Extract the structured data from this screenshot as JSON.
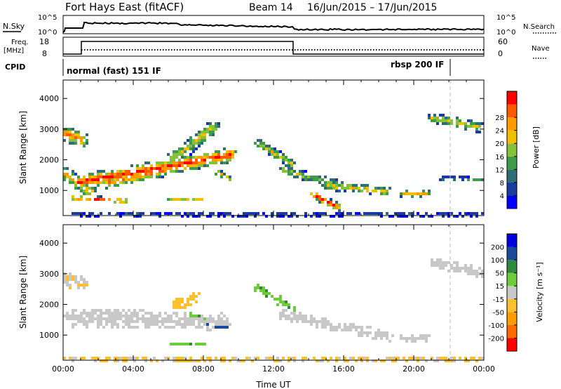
{
  "header": {
    "title": "Fort Hays East (fitACF)",
    "beam": "Beam 14",
    "date_range": "16/Jun/2015 – 17/Jun/2015"
  },
  "panels": {
    "nsky": {
      "label": "N.Sky",
      "left_ticks": [
        "10^5",
        "10^0"
      ],
      "right_ticks": [
        "10^5",
        "10^0"
      ],
      "right_label": "N.Search"
    },
    "freq": {
      "label": "Freq.",
      "unit": "[MHz]",
      "left_ticks": [
        "18",
        "8"
      ],
      "right_ticks": [
        "60",
        "0"
      ],
      "right_label": "Nave"
    },
    "cpid": {
      "label": "CPID",
      "mode_left": "normal (fast) 151 IF",
      "mode_right": "rbsp 200 IF"
    }
  },
  "colors": {
    "power": [
      "#0000ff",
      "#1a3ca0",
      "#2f6c73",
      "#3f9a4a",
      "#85c23a",
      "#f0c000",
      "#ff9a00",
      "#ff5a00",
      "#ff0000"
    ],
    "velocity": [
      "#ff0000",
      "#ff6a00",
      "#ff9a00",
      "#ffc030",
      "#c8c8c8",
      "#6ccc3c",
      "#2f8a3a",
      "#1a4a9a",
      "#0000dd"
    ]
  },
  "chart_data": [
    {
      "type": "heatmap",
      "name": "power",
      "ylabel": "Slant Range [km]",
      "xlabel": "",
      "ylim": [
        180,
        4600
      ],
      "xlim_hours": [
        0,
        24
      ],
      "yticks": [
        "1000",
        "2000",
        "3000",
        "4000"
      ],
      "xticks": [
        "00:00",
        "04:00",
        "08:00",
        "12:00",
        "16:00",
        "20:00",
        "00:00"
      ],
      "colorbar": {
        "label": "Power [dB]",
        "ticks": [
          "4",
          "8",
          "12",
          "16",
          "20",
          "24",
          "28"
        ]
      },
      "features": [
        {
          "from": [
            0.0,
            2900
          ],
          "to": [
            1.0,
            2700
          ],
          "width_km": 500,
          "strength": 0.8
        },
        {
          "from": [
            0.0,
            1600
          ],
          "to": [
            1.5,
            1000
          ],
          "width_km": 450,
          "strength": 0.7
        },
        {
          "from": [
            0.5,
            800
          ],
          "to": [
            3.5,
            700
          ],
          "width_km": 200,
          "strength": 0.85
        },
        {
          "from": [
            0.8,
            1300
          ],
          "to": [
            9.5,
            2200
          ],
          "width_km": 500,
          "strength": 0.95
        },
        {
          "from": [
            2.5,
            1300
          ],
          "to": [
            6.5,
            1800
          ],
          "width_km": 400,
          "strength": 0.8
        },
        {
          "from": [
            6.0,
            2000
          ],
          "to": [
            8.5,
            3100
          ],
          "width_km": 500,
          "strength": 0.6
        },
        {
          "from": [
            6.0,
            750
          ],
          "to": [
            8.0,
            750
          ],
          "width_km": 150,
          "strength": 0.6
        },
        {
          "from": [
            8.5,
            1700
          ],
          "to": [
            9.5,
            1400
          ],
          "width_km": 200,
          "strength": 0.7
        },
        {
          "from": [
            11.0,
            2600
          ],
          "to": [
            13.0,
            1900
          ],
          "width_km": 300,
          "strength": 0.6
        },
        {
          "from": [
            12.5,
            1700
          ],
          "to": [
            16.0,
            1150
          ],
          "width_km": 350,
          "strength": 0.5
        },
        {
          "from": [
            14.2,
            900
          ],
          "to": [
            15.6,
            500
          ],
          "width_km": 250,
          "strength": 1.0
        },
        {
          "from": [
            15.0,
            1200
          ],
          "to": [
            18.5,
            1000
          ],
          "width_km": 300,
          "strength": 0.65
        },
        {
          "from": [
            19.3,
            950
          ],
          "to": [
            20.7,
            950
          ],
          "width_km": 250,
          "strength": 0.7
        },
        {
          "from": [
            21.0,
            3400
          ],
          "to": [
            23.7,
            3100
          ],
          "width_km": 350,
          "strength": 0.6
        },
        {
          "from": [
            21.5,
            1450
          ],
          "to": [
            24.0,
            1400
          ],
          "width_km": 150,
          "strength": 0.4
        },
        {
          "from": [
            0.0,
            260
          ],
          "to": [
            24.0,
            260
          ],
          "width_km": 120,
          "strength": 0.25
        }
      ]
    },
    {
      "type": "heatmap",
      "name": "velocity",
      "ylabel": "Slant Range [km]",
      "xlabel": "Time UT",
      "ylim": [
        180,
        4600
      ],
      "xlim_hours": [
        0,
        24
      ],
      "yticks": [
        "1000",
        "2000",
        "3000",
        "4000"
      ],
      "xticks": [
        "00:00",
        "04:00",
        "08:00",
        "12:00",
        "16:00",
        "20:00",
        "00:00"
      ],
      "colorbar": {
        "label": "Velocity [m s⁻¹]",
        "ticks": [
          "200",
          "100",
          "50",
          "15",
          "-15",
          "-50",
          "-100",
          "-200"
        ]
      },
      "features": [
        {
          "from": [
            0.0,
            2900
          ],
          "to": [
            1.0,
            2700
          ],
          "width_km": 500,
          "value": -15
        },
        {
          "from": [
            0.5,
            1600
          ],
          "to": [
            9.0,
            1500
          ],
          "width_km": 600,
          "value": 0
        },
        {
          "from": [
            6.3,
            2000
          ],
          "to": [
            7.4,
            2300
          ],
          "width_km": 400,
          "value": -30
        },
        {
          "from": [
            7.5,
            1500
          ],
          "to": [
            9.3,
            1250
          ],
          "width_km": 120,
          "value": 180
        },
        {
          "from": [
            6.0,
            750
          ],
          "to": [
            8.0,
            750
          ],
          "width_km": 150,
          "value": 40
        },
        {
          "from": [
            7.2,
            1700
          ],
          "to": [
            8.5,
            1500
          ],
          "width_km": 200,
          "value": 45
        },
        {
          "from": [
            11.0,
            2600
          ],
          "to": [
            13.0,
            1900
          ],
          "width_km": 300,
          "value": 40
        },
        {
          "from": [
            12.5,
            1700
          ],
          "to": [
            18.5,
            1000
          ],
          "width_km": 350,
          "value": 0
        },
        {
          "from": [
            19.3,
            950
          ],
          "to": [
            20.7,
            950
          ],
          "width_km": 250,
          "value": 0
        },
        {
          "from": [
            21.0,
            3400
          ],
          "to": [
            23.7,
            3100
          ],
          "width_km": 350,
          "value": 0
        },
        {
          "from": [
            0.0,
            260
          ],
          "to": [
            24.0,
            260
          ],
          "width_km": 120,
          "value": -20
        }
      ]
    }
  ]
}
